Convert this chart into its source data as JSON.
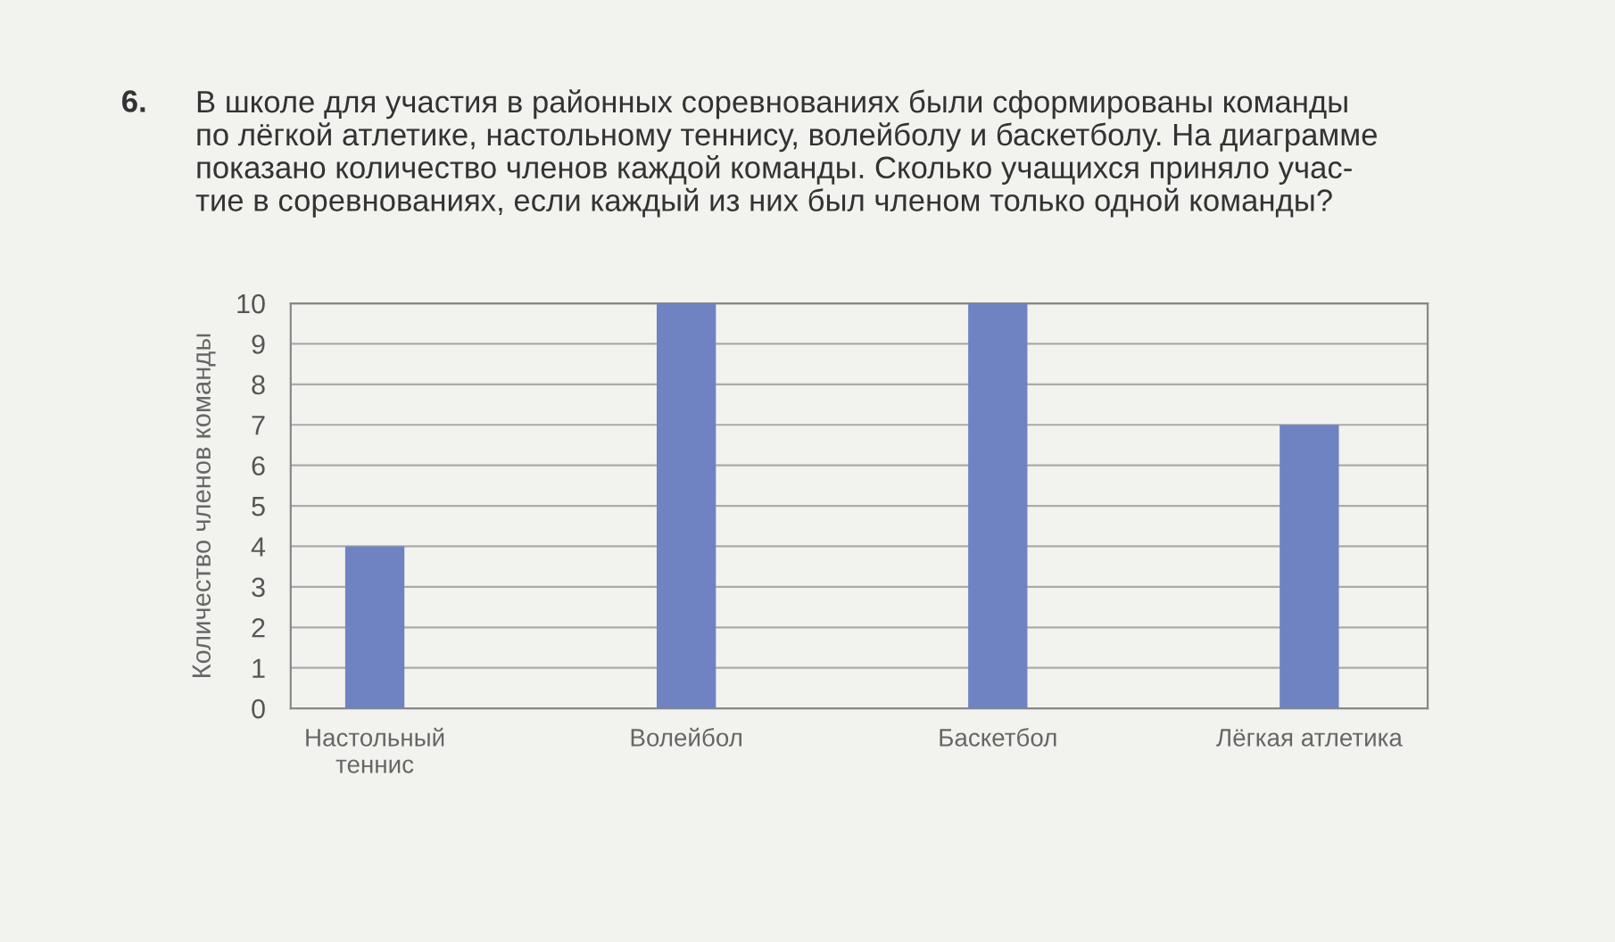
{
  "chart_data": {
    "type": "bar",
    "title": "В школе для участия в районных соревнованиях были сформированы команды\nпо лёгкой атлетике, настольному теннису, волейболу и баскетболу. На диаграмме\nпоказано количество членов каждой команды. Сколько учащихся приняло учас-\nтие в соревнованиях, если каждый из них был членом только одной команды?",
    "annotations": [
      "6."
    ],
    "ylabel": "Количество членов команды",
    "categories": [
      "Настольный\nтеннис",
      "Волейбол",
      "Баскетбол",
      "Лёгкая атлетика"
    ],
    "values": [
      4,
      10,
      10,
      7
    ],
    "color": "#6f83c2",
    "ylim": [
      0,
      10
    ],
    "yticks": [
      0,
      1,
      2,
      3,
      4,
      5,
      6,
      7,
      8,
      9,
      10
    ],
    "grid": "y"
  }
}
